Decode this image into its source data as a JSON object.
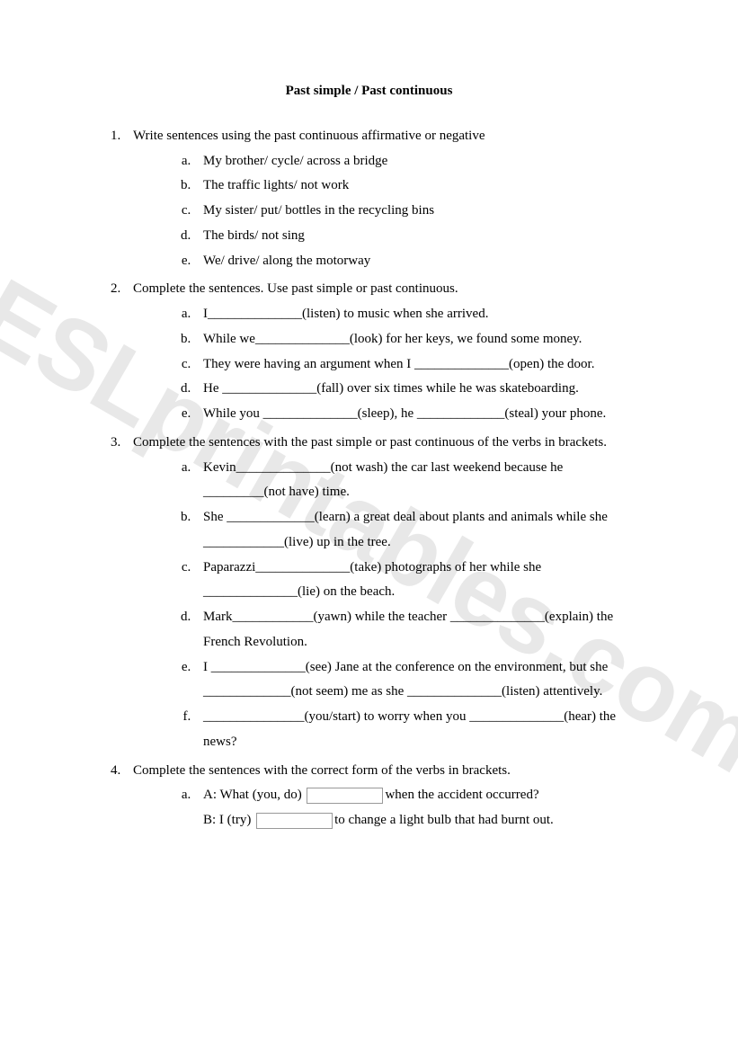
{
  "title": "Past simple / Past continuous",
  "watermark": "ESLprintables.com",
  "q1": {
    "prompt": "Write sentences using the past continuous affirmative or negative",
    "items": {
      "a": "My brother/ cycle/ across a bridge",
      "b": "The traffic lights/ not work",
      "c": "My sister/ put/ bottles in the recycling bins",
      "d": "The birds/ not sing",
      "e": "We/ drive/ along the motorway"
    }
  },
  "q2": {
    "prompt": "Complete the sentences. Use past simple or past continuous.",
    "items": {
      "a": "I______________(listen) to music when she arrived.",
      "b": "While we______________(look) for her keys, we found some money.",
      "c": "They were having an argument when I ______________(open) the door.",
      "d": "He ______________(fall) over six times while he was skateboarding.",
      "e": "While you ______________(sleep), he _____________(steal) your phone."
    }
  },
  "q3": {
    "prompt": "Complete the sentences with the past simple or past continuous of the verbs in brackets.",
    "items": {
      "a": "Kevin______________(not wash) the car last weekend because he _________(not have) time.",
      "b": "She _____________(learn) a great deal about plants and animals while she ____________(live) up in the tree.",
      "c": "Paparazzi______________(take) photographs of her while she ______________(lie) on the beach.",
      "d": "Mark____________(yawn) while the teacher ______________(explain) the French Revolution.",
      "e": "I ______________(see) Jane at the conference on the environment, but she _____________(not seem) me as she ______________(listen) attentively.",
      "f": "_______________(you/start) to worry when you ______________(hear) the news?"
    }
  },
  "q4": {
    "prompt": "Complete the sentences with the correct form of the verbs in brackets.",
    "a_line1_before": "A: What (you, do) ",
    "a_line1_after": "when the accident occurred?",
    "a_line2_before": "B: I (try) ",
    "a_line2_after": "to change a light bulb that had burnt out."
  }
}
